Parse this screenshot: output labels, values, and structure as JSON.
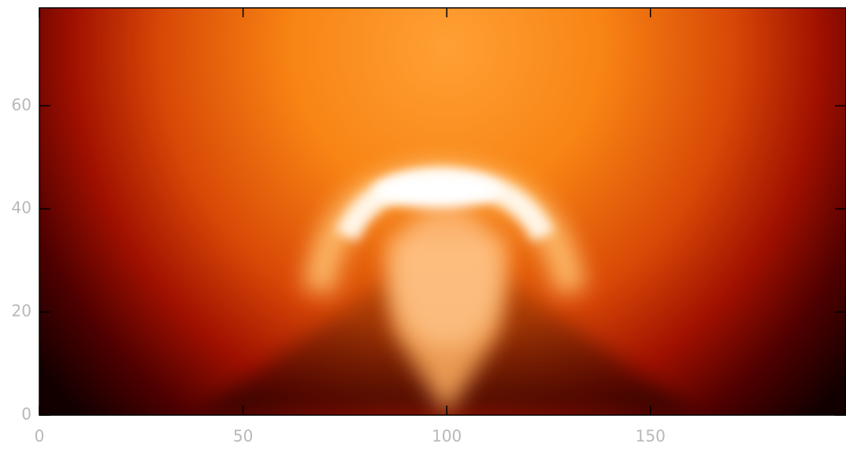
{
  "chart_data": {
    "type": "heatmap",
    "xlim": [
      0,
      198
    ],
    "ylim": [
      0,
      79
    ],
    "xticks": [
      0,
      50,
      100,
      150
    ],
    "yticks": [
      0,
      20,
      40,
      60
    ]
  }
}
